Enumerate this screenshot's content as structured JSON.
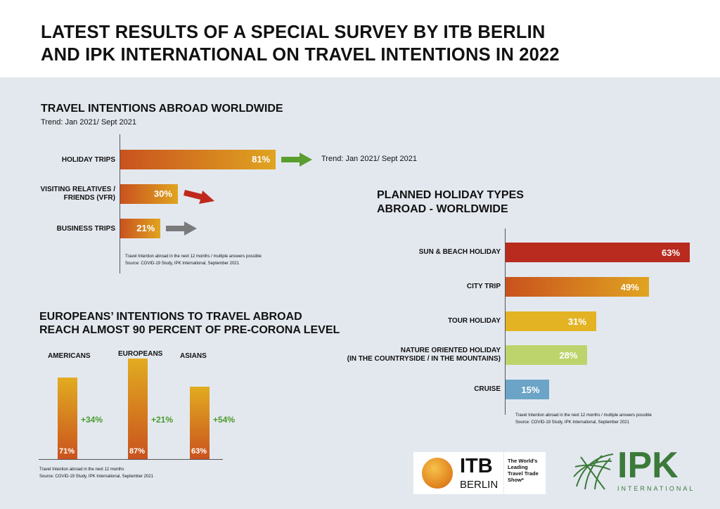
{
  "header": {
    "line1": "LATEST RESULTS OF A SPECIAL SURVEY BY ITB BERLIN",
    "line2": "AND IPK INTERNATIONAL ON TRAVEL INTENTIONS IN 2022"
  },
  "chart_data": [
    {
      "type": "bar",
      "orientation": "horizontal",
      "title": "TRAVEL INTENTIONS ABROAD WORLDWIDE",
      "subtitle": "Trend: Jan 2021/ Sept 2021",
      "categories": [
        "HOLIDAY TRIPS",
        "VISITING RELATIVES / FRIENDS (VFR)",
        "BUSINESS TRIPS"
      ],
      "values": [
        81,
        30,
        21
      ],
      "labels": [
        "81%",
        "30%",
        "21%"
      ],
      "trend": [
        "up",
        "down",
        "flat"
      ],
      "trend_colors": [
        "#5a9e2f",
        "#c0281c",
        "#7a7a7a"
      ],
      "annotation": "Trend: Jan 2021/ Sept 2021",
      "notes": [
        "Travel Intention abroad in the next 12 months / multiple answers possible",
        "Source: COVID-19 Study, IPK International, September 2021"
      ]
    },
    {
      "type": "bar",
      "orientation": "horizontal",
      "title": [
        "PLANNED HOLIDAY TYPES",
        "ABROAD - WORLDWIDE"
      ],
      "categories": [
        "SUN & BEACH HOLIDAY",
        "CITY TRIP",
        "TOUR HOLIDAY",
        "NATURE ORIENTED HOLIDAY (IN THE COUNTRYSIDE / IN THE MOUNTAINS)",
        "CRUISE"
      ],
      "category_lines": [
        [
          "SUN & BEACH HOLIDAY"
        ],
        [
          "CITY TRIP"
        ],
        [
          "TOUR HOLIDAY"
        ],
        [
          "NATURE ORIENTED HOLIDAY",
          "(IN THE COUNTRYSIDE / IN THE MOUNTAINS)"
        ],
        [
          "CRUISE"
        ]
      ],
      "values": [
        63,
        49,
        31,
        28,
        15
      ],
      "labels": [
        "63%",
        "49%",
        "31%",
        "28%",
        "15%"
      ],
      "colors": [
        "#b92b1f",
        "gradient",
        "#e3b324",
        "#bdd46c",
        "#6ba4c6"
      ],
      "notes": [
        "Travel Intention abroad in the next 12 months / multiple answers possible",
        "Source: COVID-19 Study, IPK International, September 2021"
      ]
    },
    {
      "type": "bar",
      "orientation": "vertical",
      "title": [
        "EUROPEANS’ INTENTIONS TO TRAVEL ABROAD",
        "REACH ALMOST 90 PERCENT OF PRE-CORONA LEVEL"
      ],
      "categories": [
        "AMERICANS",
        "EUROPEANS",
        "ASIANS"
      ],
      "values": [
        71,
        87,
        63
      ],
      "labels": [
        "71%",
        "87%",
        "63%"
      ],
      "changes": [
        "+34%",
        "+21%",
        "+54%"
      ],
      "notes": [
        "Travel Intention abroad in the next 12 months",
        "Source: COVID-19 Study, IPK International, September 2021"
      ]
    }
  ],
  "logos": {
    "itb_main": "ITB",
    "itb_sub": "BERLIN",
    "itb_tag": [
      "The World's",
      "Leading",
      "Travel Trade",
      "Show*"
    ],
    "ipk_main": "IPK",
    "ipk_sub": "INTERNATIONAL"
  }
}
